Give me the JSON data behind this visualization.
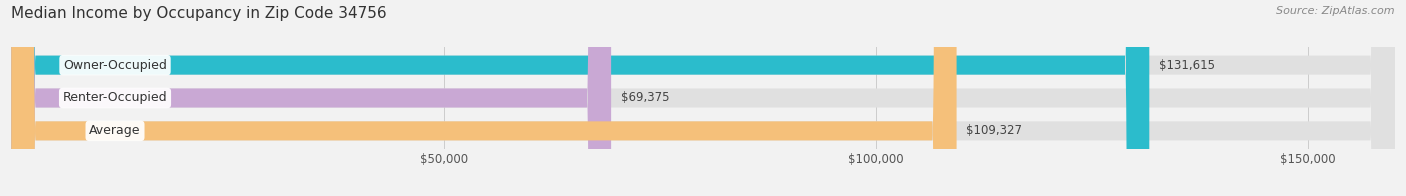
{
  "title": "Median Income by Occupancy in Zip Code 34756",
  "source": "Source: ZipAtlas.com",
  "categories": [
    "Owner-Occupied",
    "Renter-Occupied",
    "Average"
  ],
  "values": [
    131615,
    69375,
    109327
  ],
  "bar_colors": [
    "#2bbccc",
    "#c9a8d4",
    "#f5c07a"
  ],
  "value_labels": [
    "$131,615",
    "$69,375",
    "$109,327"
  ],
  "xlim": [
    0,
    160000
  ],
  "xticks": [
    50000,
    100000,
    150000
  ],
  "xticklabels": [
    "$50,000",
    "$100,000",
    "$150,000"
  ],
  "bg_color": "#f2f2f2",
  "bar_bg_color": "#e0e0e0",
  "bar_height": 0.58,
  "label_fontsize": 9.0,
  "value_fontsize": 8.5,
  "title_fontsize": 11.0,
  "source_fontsize": 8.0
}
